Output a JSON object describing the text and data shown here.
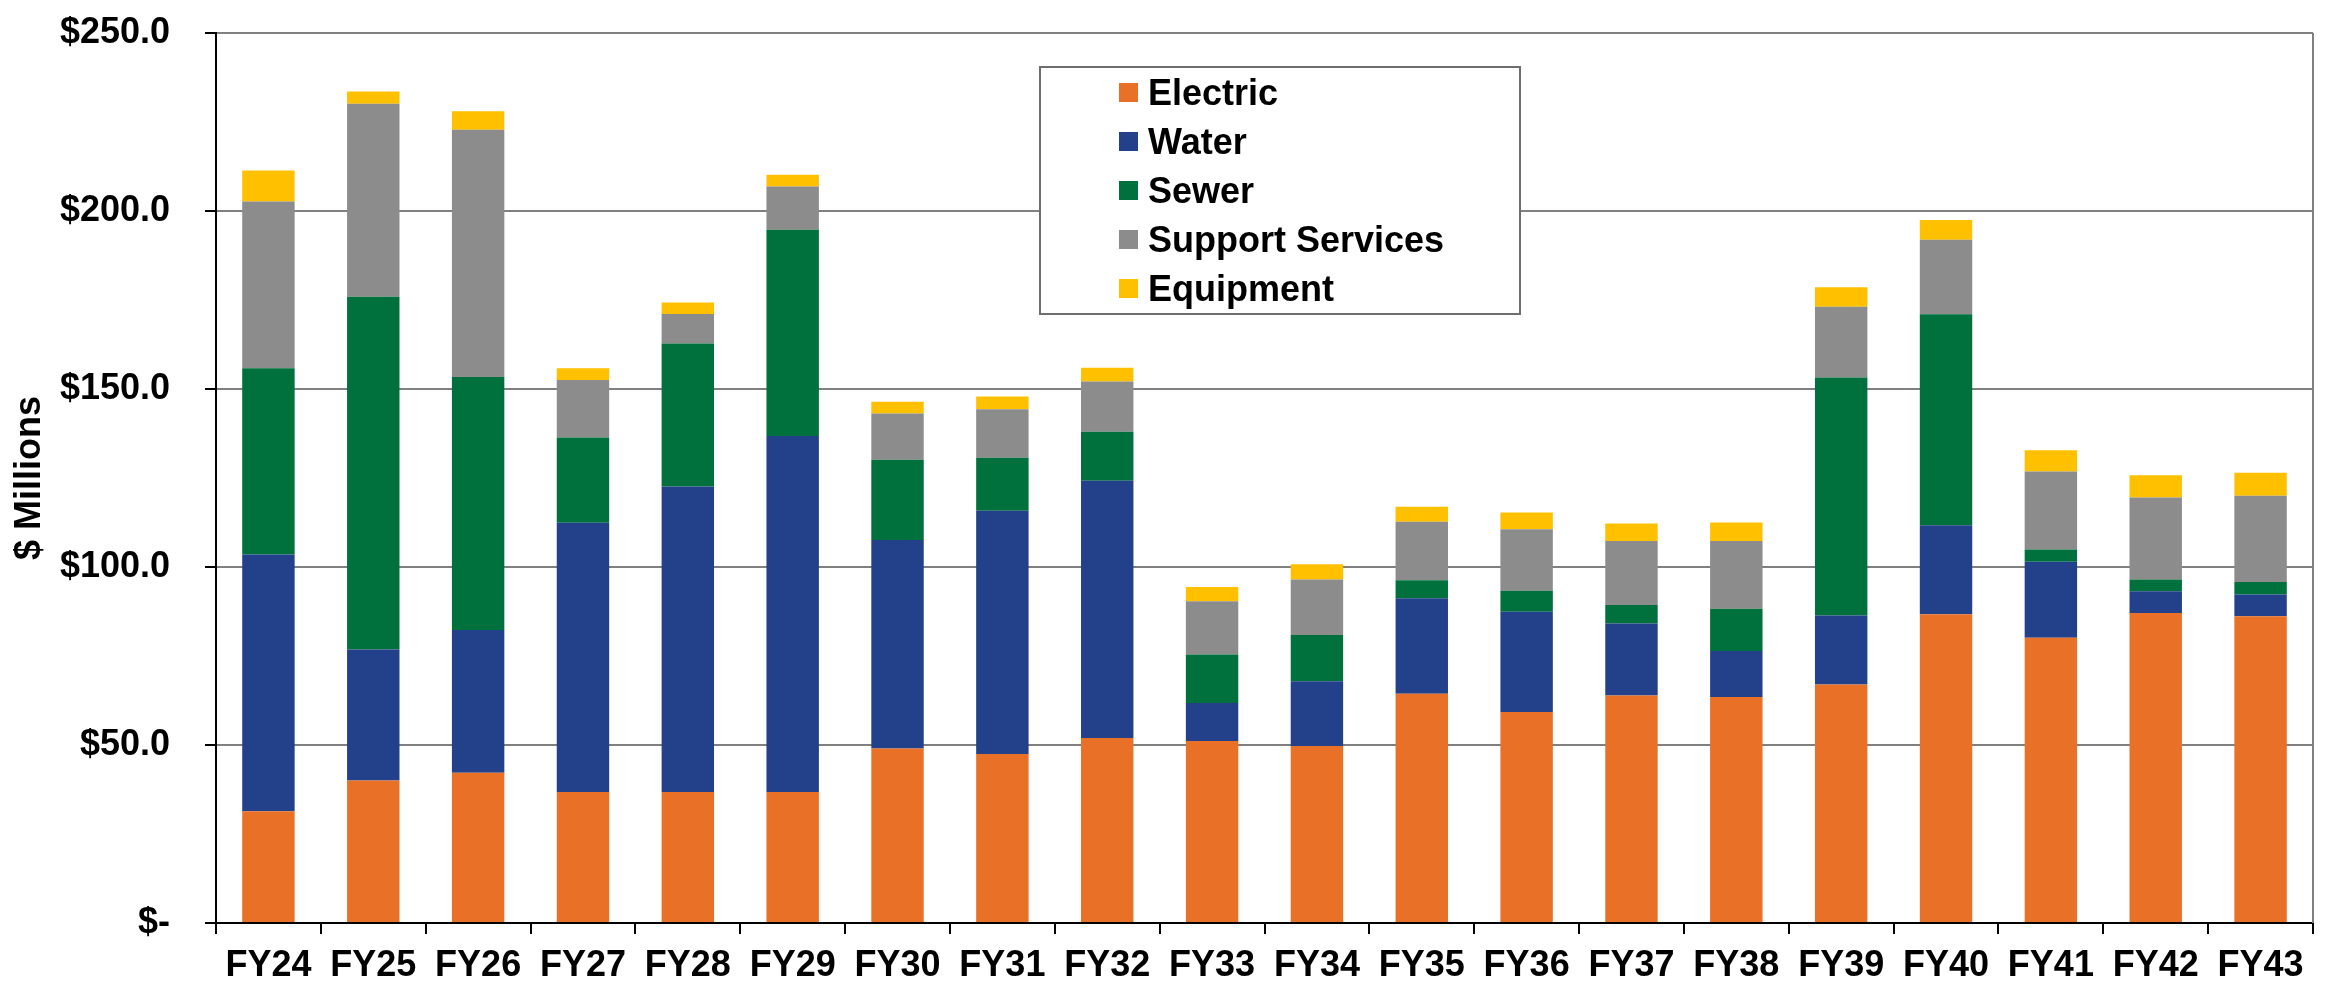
{
  "chart_data": {
    "type": "bar",
    "stacked": true,
    "categories": [
      "FY24",
      "FY25",
      "FY26",
      "FY27",
      "FY28",
      "FY29",
      "FY30",
      "FY31",
      "FY32",
      "FY33",
      "FY34",
      "FY35",
      "FY36",
      "FY37",
      "FY38",
      "FY39",
      "FY40",
      "FY41",
      "FY42",
      "FY43"
    ],
    "series": [
      {
        "name": "Electric",
        "color": "#e97027",
        "values": [
          31.4,
          40.0,
          42.2,
          36.8,
          36.8,
          36.8,
          49.0,
          47.5,
          52.0,
          51.1,
          49.7,
          64.4,
          59.3,
          63.9,
          63.5,
          67.0,
          86.7,
          80.1,
          87.1,
          86.2
        ]
      },
      {
        "name": "Water",
        "color": "#23418a",
        "values": [
          72.1,
          36.8,
          40.1,
          75.6,
          85.8,
          100.0,
          58.6,
          68.3,
          72.2,
          10.7,
          18.2,
          26.8,
          28.1,
          20.2,
          12.9,
          19.4,
          25.0,
          21.4,
          6.1,
          6.1
        ]
      },
      {
        "name": "Sewer",
        "color": "#00703c",
        "values": [
          52.3,
          99.1,
          71.1,
          24.0,
          40.2,
          57.9,
          22.5,
          14.9,
          13.8,
          13.6,
          13.0,
          5.1,
          5.9,
          5.2,
          11.9,
          66.8,
          59.3,
          3.4,
          3.3,
          3.5
        ]
      },
      {
        "name": "Support Services",
        "color": "#8c8c8c",
        "values": [
          46.9,
          54.2,
          69.4,
          16.1,
          8.3,
          12.2,
          13.0,
          13.6,
          14.1,
          15.0,
          15.6,
          16.4,
          17.3,
          18.0,
          19.0,
          19.9,
          20.9,
          21.9,
          23.0,
          24.2
        ]
      },
      {
        "name": "Equipment",
        "color": "#ffc000",
        "values": [
          8.7,
          3.5,
          5.2,
          3.3,
          3.2,
          3.3,
          3.3,
          3.6,
          3.9,
          4.0,
          4.3,
          4.2,
          4.7,
          4.9,
          5.2,
          5.5,
          5.6,
          6.0,
          6.3,
          6.5
        ]
      }
    ],
    "ylabel": "$ Millions",
    "ylim": [
      0,
      250
    ],
    "yticks": [
      {
        "value": 0,
        "label": "$-"
      },
      {
        "value": 50,
        "label": "$50.0"
      },
      {
        "value": 100,
        "label": "$100.0"
      },
      {
        "value": 150,
        "label": "$150.0"
      },
      {
        "value": 200,
        "label": "$200.0"
      },
      {
        "value": 250,
        "label": "$250.0"
      }
    ],
    "grid": "y",
    "legend": "top"
  }
}
